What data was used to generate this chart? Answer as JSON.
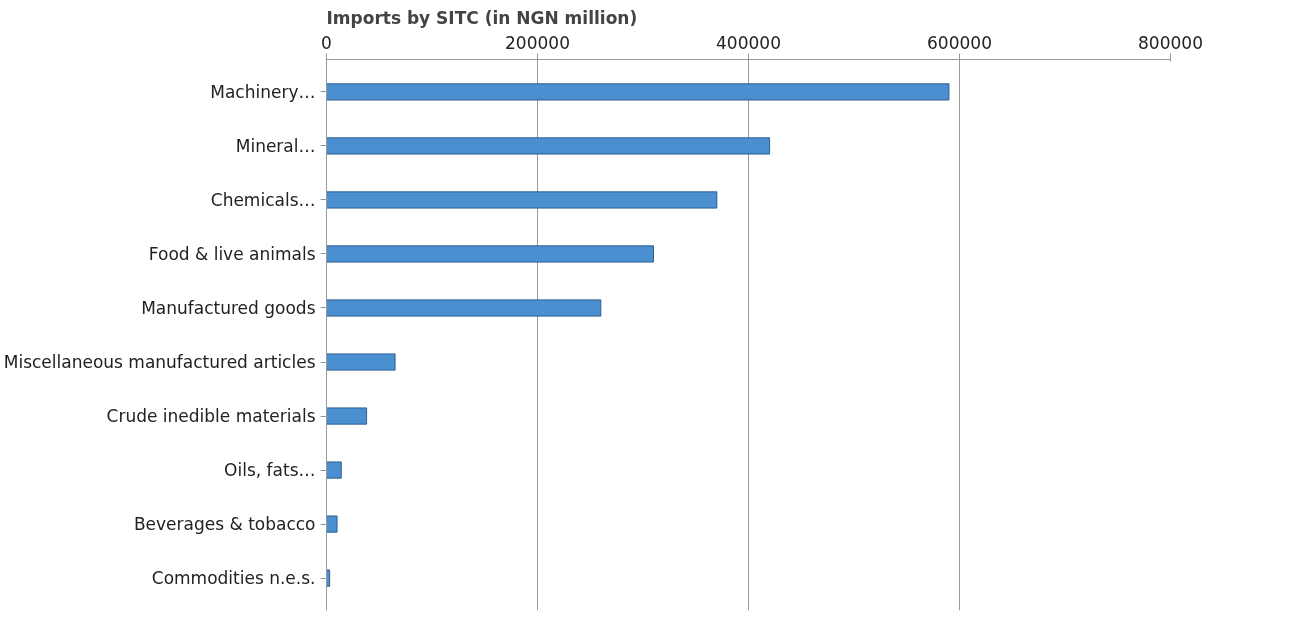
{
  "chart_data": {
    "type": "bar",
    "orientation": "horizontal",
    "title": "Imports by SITC (in NGN million)",
    "categories": [
      "Machinery…",
      "Mineral…",
      "Chemicals…",
      "Food & live animals",
      "Manufactured goods",
      "Miscellaneous manufactured articles",
      "Crude inedible materials",
      "Oils, fats…",
      "Beverages & tobacco",
      "Commodities n.e.s."
    ],
    "values": [
      590000,
      420000,
      370000,
      310000,
      260000,
      65000,
      38000,
      14000,
      10000,
      3000
    ],
    "color": "#4a8fd0",
    "xlim": [
      0,
      800000
    ],
    "xticks": [
      0,
      200000,
      400000,
      600000,
      800000
    ],
    "grid": "x"
  }
}
